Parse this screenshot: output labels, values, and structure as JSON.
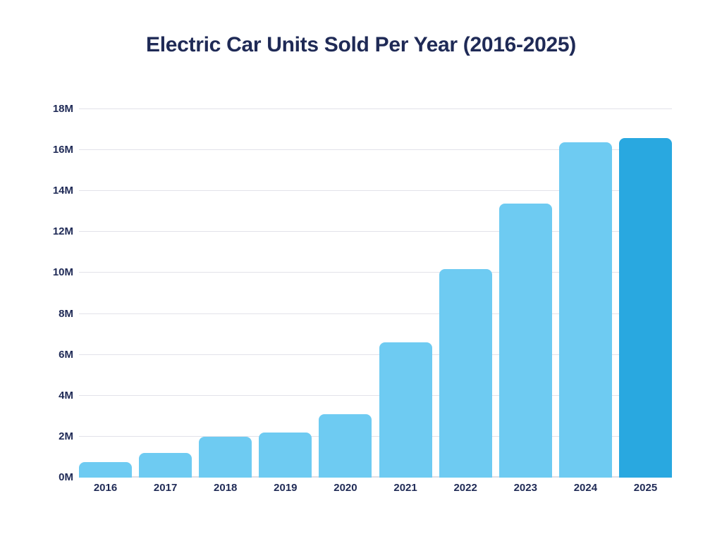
{
  "chart_data": {
    "type": "bar",
    "title": "Electric Car Units Sold Per Year (2016-2025)",
    "categories": [
      "2016",
      "2017",
      "2018",
      "2019",
      "2020",
      "2021",
      "2022",
      "2023",
      "2024",
      "2025"
    ],
    "values": [
      0.75,
      1.2,
      2.0,
      2.2,
      3.1,
      6.6,
      10.2,
      13.4,
      16.4,
      16.6
    ],
    "unit": "M",
    "xlabel": "",
    "ylabel": "",
    "ylim": [
      0,
      18
    ],
    "ytick_step": 2,
    "ytick_labels": [
      "0M",
      "2M",
      "4M",
      "6M",
      "8M",
      "10M",
      "12M",
      "14M",
      "16M",
      "18M"
    ],
    "grid": true,
    "legend": false,
    "highlight_category": "2025",
    "colors": {
      "bar": "#6ECBF2",
      "bar_highlight": "#29A8E0",
      "text": "#1F2A56",
      "gridline": "#E2E2E9",
      "axis_line": "#DEDEE5",
      "background": "#FFFFFF"
    }
  }
}
